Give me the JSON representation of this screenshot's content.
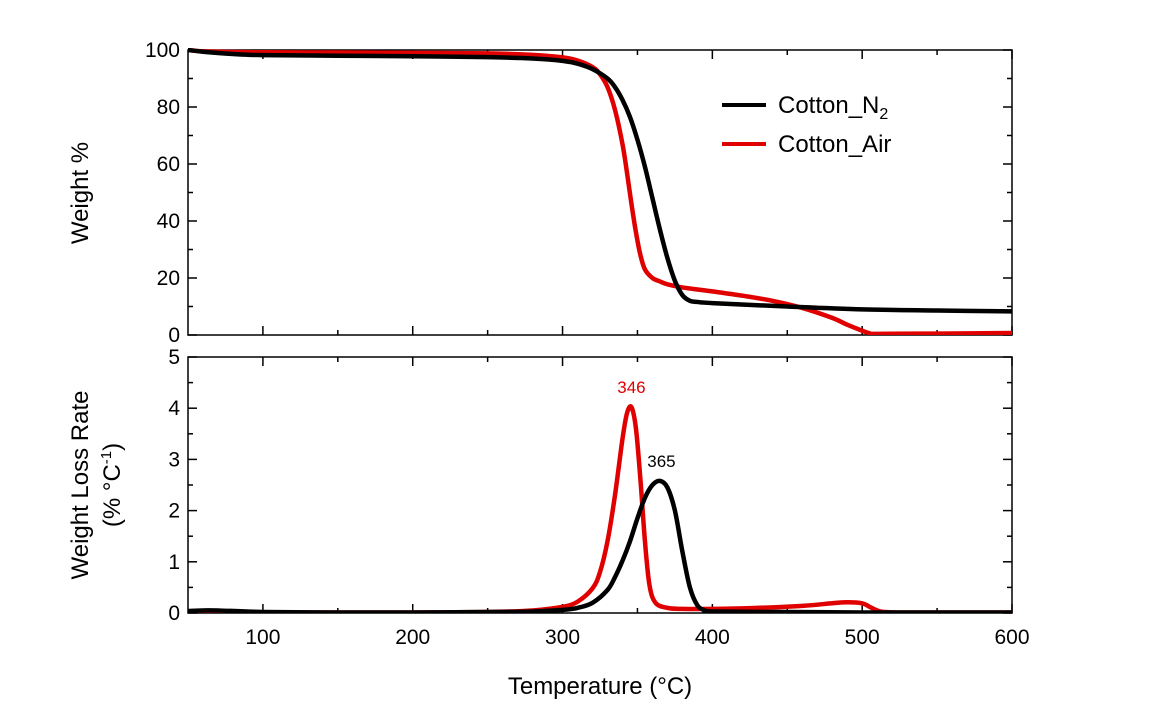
{
  "chart_data": [
    {
      "type": "line",
      "panel": "top",
      "title": "",
      "xlabel": "",
      "ylabel": "Weight %",
      "xlim": [
        50,
        600
      ],
      "ylim": [
        0,
        100
      ],
      "yticks": [
        0,
        20,
        40,
        60,
        80,
        100
      ],
      "legend": {
        "placement": "top-right",
        "entries": [
          {
            "series": "Cotton_N2",
            "base": "Cotton_N",
            "sub": "2"
          },
          {
            "series": "Cotton_Air",
            "base": "Cotton_Air",
            "sub": ""
          }
        ]
      },
      "series": [
        {
          "name": "Cotton_N2",
          "color": "#000000",
          "x": [
            50,
            60,
            80,
            100,
            150,
            200,
            250,
            280,
            300,
            310,
            320,
            330,
            335,
            340,
            345,
            350,
            355,
            360,
            365,
            370,
            375,
            380,
            385,
            390,
            400,
            450,
            500,
            550,
            600
          ],
          "y": [
            100,
            99.4,
            98.6,
            98.2,
            98,
            97.8,
            97.5,
            97,
            96.2,
            95.2,
            93.3,
            90,
            87,
            82.5,
            76.5,
            68.5,
            59,
            48,
            37,
            27,
            19,
            14,
            12,
            11.6,
            11.2,
            10,
            9,
            8.6,
            8.3
          ]
        },
        {
          "name": "Cotton_Air",
          "color": "#e00000",
          "x": [
            50,
            60,
            80,
            100,
            150,
            200,
            250,
            280,
            300,
            310,
            320,
            325,
            330,
            335,
            340,
            343,
            346,
            349,
            352,
            355,
            360,
            365,
            370,
            380,
            400,
            420,
            440,
            460,
            480,
            490,
            500,
            505,
            510,
            550,
            600
          ],
          "y": [
            100,
            99.5,
            99.3,
            99.2,
            99.1,
            99,
            98.8,
            98.3,
            97.4,
            96.3,
            94,
            91.5,
            87,
            79,
            67,
            57,
            46,
            36,
            28,
            23,
            20,
            18.8,
            17.8,
            16.7,
            15.3,
            13.8,
            12,
            9.5,
            6,
            3.6,
            1.5,
            0.6,
            0.4,
            0.5,
            0.7
          ]
        }
      ]
    },
    {
      "type": "line",
      "panel": "bottom",
      "title": "",
      "xlabel": "Temperature (°C)",
      "ylabel_line1": "Weight Loss Rate",
      "ylabel_line2_pre": "(% °C",
      "ylabel_line2_sup": "-1",
      "ylabel_line2_post": ")",
      "xlim": [
        50,
        600
      ],
      "ylim": [
        0,
        5
      ],
      "xticks": [
        100,
        200,
        300,
        400,
        500,
        600
      ],
      "yticks": [
        0,
        1,
        2,
        3,
        4,
        5
      ],
      "annotations": [
        {
          "text": "346",
          "x": 346,
          "y": 4.02,
          "color": "#e00000"
        },
        {
          "text": "365",
          "x": 366,
          "y": 2.58,
          "color": "#000000"
        }
      ],
      "series": [
        {
          "name": "Cotton_N2",
          "color": "#000000",
          "x": [
            50,
            60,
            70,
            100,
            150,
            200,
            250,
            280,
            300,
            310,
            320,
            330,
            335,
            340,
            345,
            350,
            355,
            360,
            365,
            370,
            375,
            380,
            385,
            390,
            395,
            400,
            450,
            500,
            550,
            600
          ],
          "y": [
            0.04,
            0.05,
            0.05,
            0.02,
            0.01,
            0.01,
            0.02,
            0.03,
            0.06,
            0.1,
            0.2,
            0.45,
            0.7,
            1.02,
            1.4,
            1.85,
            2.25,
            2.5,
            2.58,
            2.45,
            2.0,
            1.2,
            0.5,
            0.15,
            0.05,
            0.03,
            0.02,
            0.01,
            0.01,
            0.01
          ]
        },
        {
          "name": "Cotton_Air",
          "color": "#e00000",
          "x": [
            50,
            100,
            150,
            200,
            250,
            280,
            300,
            310,
            320,
            325,
            330,
            335,
            340,
            343,
            346,
            349,
            352,
            355,
            358,
            362,
            370,
            380,
            400,
            430,
            460,
            480,
            490,
            500,
            505,
            510,
            515,
            530,
            600
          ],
          "y": [
            0.02,
            0.01,
            0.01,
            0.01,
            0.02,
            0.05,
            0.12,
            0.22,
            0.48,
            0.8,
            1.4,
            2.3,
            3.4,
            3.9,
            4.02,
            3.6,
            2.6,
            1.4,
            0.55,
            0.2,
            0.1,
            0.08,
            0.08,
            0.1,
            0.14,
            0.19,
            0.21,
            0.19,
            0.12,
            0.05,
            0.02,
            0.01,
            0.01
          ]
        }
      ]
    }
  ]
}
